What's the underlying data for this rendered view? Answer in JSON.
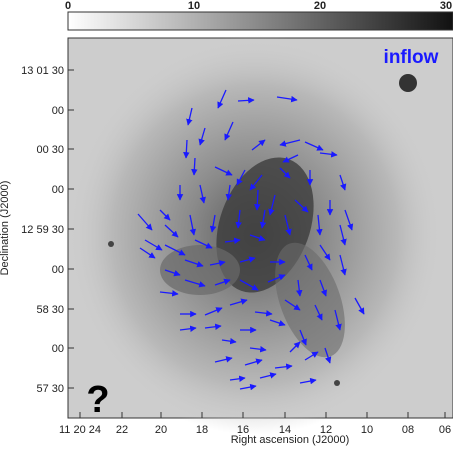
{
  "colorbar": {
    "ticks": [
      "0",
      "10",
      "20",
      "30"
    ]
  },
  "y_axis": {
    "title": "Declination (J2000)",
    "labels": [
      "13 01 30",
      "00",
      "00 30",
      "00",
      "12 59 30",
      "00",
      "58 30",
      "00",
      "57 30"
    ]
  },
  "x_axis": {
    "title": "Right ascension (J2000)",
    "labels": [
      "11 20 24",
      "22",
      "20",
      "18",
      "16",
      "14",
      "12",
      "10",
      "08",
      "06"
    ]
  },
  "annotations": {
    "inflow": "inflow",
    "question": "?"
  }
}
